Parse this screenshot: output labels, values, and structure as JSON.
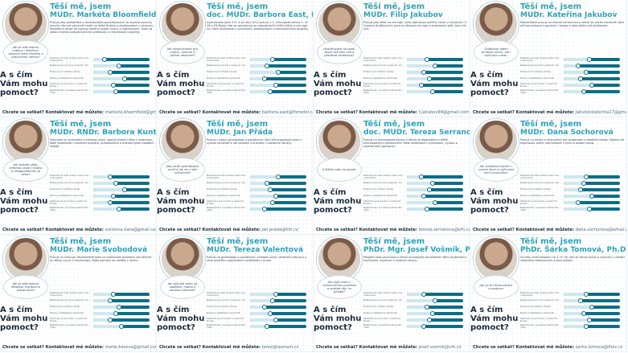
{
  "common": {
    "greeting": "Těší mě, jsem",
    "question": "A s čím Vám mohu pomoct?",
    "contact_prefix": "Chcete se setkat? Kontaktovat mě můžete:",
    "bar_labels": [
      "Rozhodnutí mezi dvěma nebo více možnostmi",
      "Nastavování priorit a reálných cílů",
      "Podpora při zvládání stresu",
      "Rozvoj a stabilizace osobnosti",
      "Slaďování pracovního a osobního života",
      "Nastartování a podpora kariérního růstu"
    ]
  },
  "cards": [
    {
      "name": "MUDr. Markéta Bloomfield, Ph.D.",
      "bubble": "Jak se stát dobrou matkou i lékařkou, zároveň mezi chodem a pracovními nároky?",
      "bio": "Pracuji jako pediatrička a revmatoložka specializovaná na vrozené poruchy imunity. Na své zahraniční stáži ve Velké Británii a zkušenostech z výzkumu. Posledních deset let sloučuji kariérní osobní rovinu s rodičovstvím, mám za sebou Institut postgraduálního vzdělávání a mezinárodní projekty.",
      "email": "marketa.bloomfield@gmail.com",
      "bars": [
        0.2,
        0.45,
        0.3,
        0.55,
        0.35,
        0.4
      ]
    },
    {
      "name": "doc. MUDr. Barbora East, PhD, FEBS AWS",
      "bubble": "Jak získat prostor pro rodinu, výzkum a přitom nezhořet?",
      "bio": "Vystudovala jsem 3.LF a od roku 2012 pracuji v 3. chirurgické klinice 1. LF UK a FN Motol, kde se specializuji na rekonstrukční břišní stěny a chirurgii kýl. Mám zkušenosti s výzkumem, publikováním a mezinárodními projekty.",
      "email": "barbora.east@fnmotol.cz",
      "bars": [
        0.4,
        0.3,
        0.5,
        0.25,
        0.45,
        0.35
      ]
    },
    {
      "name": "MUDr. Filip Jakubov",
      "bubble": "Hodně práce na sobě. Navíc mě baví učit a předávat zkušenosti.",
      "bio": "Pracuji jako lékař na chirurgii i přes zajímavou kariérní cestu v nemocnici. V Českých Budějovicích jsem se věnoval chirurgii a ambulantní péči, baví mě učit.",
      "email": "f.jakubov94@gmail.com",
      "bars": [
        0.35,
        0.5,
        0.3,
        0.4,
        0.25,
        0.45
      ]
    },
    {
      "name": "MUDr. Kateřina Jakubov",
      "bubble": "Zvládnout nejen profesní rozvoj, ale i najít svou cestu.",
      "bio": "Momentálně pracuji na interně nemocnice a věnuji se vnitřní medicíně. Baví mě komunikace s pacienty i kolegy a ráda sdílím své zkušenosti.",
      "email": "jakubovkaterina17@gmail.com",
      "bars": [
        0.45,
        0.25,
        0.4,
        0.3,
        0.5,
        0.35
      ]
    },
    {
      "name": "MUDr. RNDr. Barbora Kunt Vonková, Ph.D.",
      "bubble": "Jak zvládat vědu, klinickou praxi i rodinu a nezapomenout na sebe?",
      "bio": "Zabývám se výzkumem a klinickou praxí, spojuji přírodní vědy s medicínou. Mám zkušenosti s vedením projektů, publikováním a mentoringem mladších kolegů.",
      "email": "vonkova.bara@gmail.com",
      "bars": [
        0.3,
        0.4,
        0.55,
        0.35,
        0.3,
        0.45
      ]
    },
    {
      "name": "MUDr. Jan Přáda",
      "bubble": "Jaký směr specializace zvolit a jak se v něm orientovat?",
      "bio": "Pracuji v oboru gynekologie a porodnictví. Baví mě propojovat praxi s výukou studentů a rád pomohu s orientací v začátcích kariéry.",
      "email": "jan.prada@kfn.cz",
      "bars": [
        0.5,
        0.3,
        0.35,
        0.45,
        0.4,
        0.25
      ]
    },
    {
      "name": "doc. MUDr. Tereza Serranová, Ph.D.",
      "bubble": "A štěstí mám na dosah.",
      "bio": "Pracuji na neurologické klinice a věnuji se diagnostice a léčbě neurologických onemocnění. Mám zkušenosti s výzkumem, výukou a mezinárodní spoluprací.",
      "email": "tereza.serranova@vfn.cz",
      "bars": [
        0.25,
        0.45,
        0.4,
        0.3,
        0.5,
        0.35
      ]
    },
    {
      "name": "MUDr. Dana Sochorová",
      "bubble": "Jak zvládnout kariéru i osobní život a najít mezi nimi rovnováhu?",
      "bio": "Pracuji na klinice a ráda sdílím své zkušenosti s mladšími kolegy. Zajímá mě organizace práce, komunikace v týmu a osobní rozvoj.",
      "email": "dana.sochorova@email.cz",
      "bars": [
        0.4,
        0.35,
        0.3,
        0.5,
        0.25,
        0.45
      ]
    },
    {
      "name": "MUDr. Marie Svobodová",
      "bubble": "Jak se stát dobrou lékařkou a přitom si užívat život?",
      "bio": "Pracuji na chirurgii. Momentálně jsem na rodičovské dovolené, ale aktivně se věnuji výuce a mentoringu. Ráda pomohu se začátky v oboru.",
      "email": "marie.kasova@gmail.com",
      "bars": [
        0.35,
        0.3,
        0.45,
        0.4,
        0.3,
        0.5
      ]
    },
    {
      "name": "MUDr. Tereza Valentová",
      "bubble": "Jak skloubit práci na oddělení, rodinu a studium zároveň?",
      "bio": "Pracuji na gynekologii a porodnictví. Zvládám praxi i atestační přípravu a ráda poradím s plánováním vzdělávání a praxe.",
      "email": "terez@seznam.cz",
      "bars": [
        0.45,
        0.4,
        0.25,
        0.35,
        0.45,
        0.3
      ]
    },
    {
      "name": "PhDr. Mgr. Josef Vošmik, Ph.D.",
      "bubble": "Jak najít cestu v nemocničním prostředí a zvládat vše, co přináší?",
      "bio": "Působím jako psycholog a věnuji se podpoře zdravotníků. Mám zkušenosti s koučinkem, supervizí a vedením skupin.",
      "email": "josef.vosmik@vfn.cz",
      "bars": [
        0.3,
        0.5,
        0.35,
        0.45,
        0.4,
        0.3
      ]
    },
    {
      "name": "PhDr. Šárka Tomová, Ph.D., MPH",
      "bubble": "Jak na to? Komunikace a podpora.",
      "bio": "Od roku 2004 působím na 3. LF UK, kde se věnuji výuce a výzkumu v oblasti veřejného zdravotnictví a komunikace.",
      "email": "sarka.tomova@fnkv.cz",
      "bars": [
        0.4,
        0.3,
        0.5,
        0.35,
        0.45,
        0.4
      ]
    }
  ]
}
